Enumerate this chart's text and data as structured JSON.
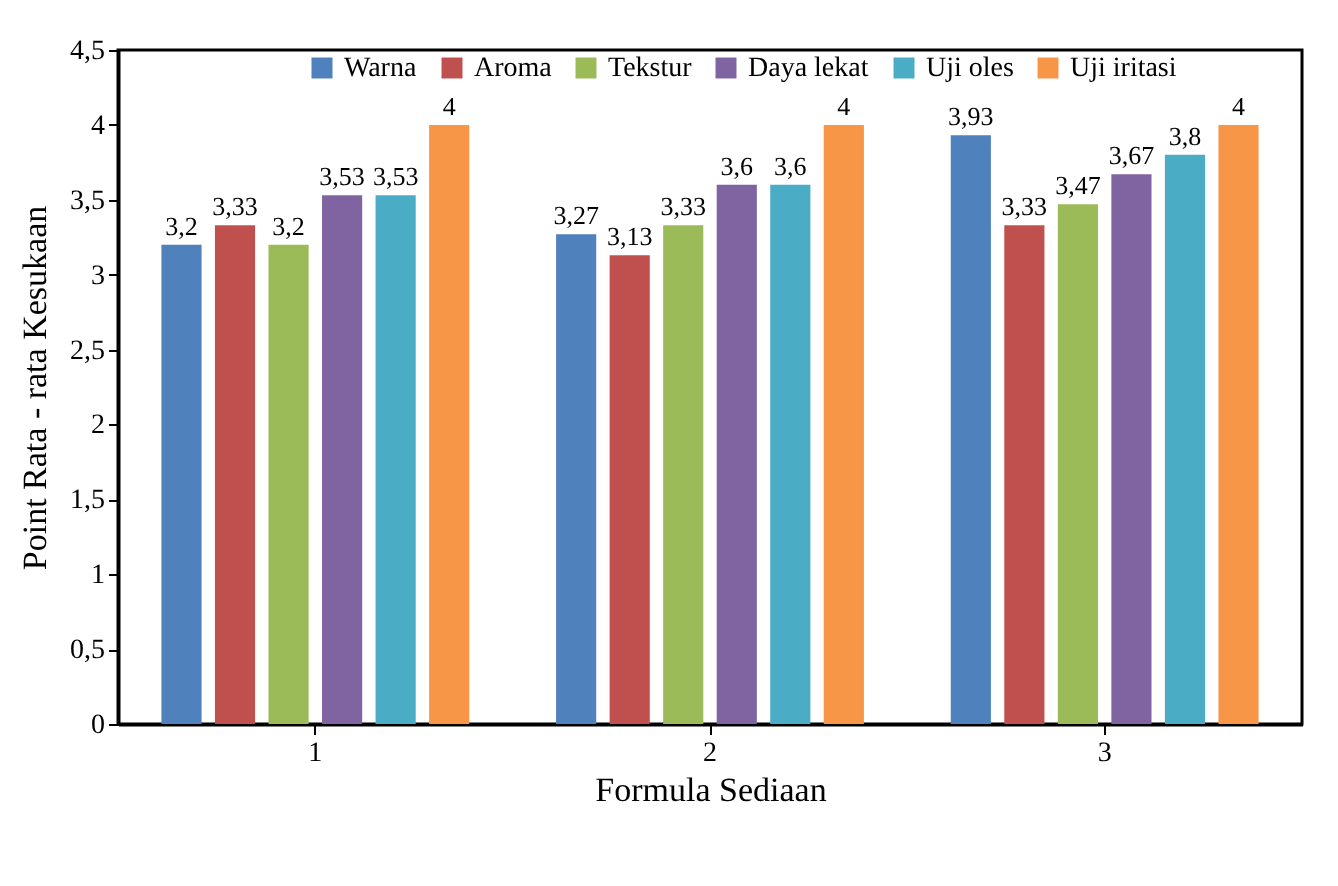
{
  "chart_data": {
    "type": "bar",
    "xlabel": "Formula Sediaan",
    "ylabel": "Point Rata - rata Kesukaan",
    "categories": [
      "1",
      "2",
      "3"
    ],
    "series": [
      {
        "name": "Warna",
        "color": "#4f81bd",
        "values": [
          3.2,
          3.27,
          3.93
        ],
        "value_labels": [
          "3,2",
          "3,27",
          "3,93"
        ]
      },
      {
        "name": "Aroma",
        "color": "#c0504d",
        "values": [
          3.33,
          3.13,
          3.33
        ],
        "value_labels": [
          "3,33",
          "3,13",
          "3,33"
        ]
      },
      {
        "name": "Tekstur",
        "color": "#9bbb59",
        "values": [
          3.2,
          3.33,
          3.47
        ],
        "value_labels": [
          "3,2",
          "3,33",
          "3,47"
        ]
      },
      {
        "name": "Daya lekat",
        "color": "#8064a2",
        "values": [
          3.53,
          3.6,
          3.67
        ],
        "value_labels": [
          "3,53",
          "3,6",
          "3,67"
        ]
      },
      {
        "name": "Uji oles",
        "color": "#4bacc6",
        "values": [
          3.53,
          3.6,
          3.8
        ],
        "value_labels": [
          "3,53",
          "3,6",
          "3,8"
        ]
      },
      {
        "name": "Uji iritasi",
        "color": "#f79646",
        "values": [
          4,
          4,
          4
        ],
        "value_labels": [
          "4",
          "4",
          "4"
        ]
      }
    ],
    "ylim": [
      0,
      4.5
    ],
    "yticks": [
      0,
      {
        "value": 0.5,
        "label": "0,5"
      },
      1,
      {
        "value": 1.5,
        "label": "1,5"
      },
      2,
      {
        "value": 2.5,
        "label": "2,5"
      },
      3,
      {
        "value": 3.5,
        "label": "3,5"
      },
      4,
      {
        "value": 4.5,
        "label": "4,5"
      }
    ],
    "grid": false,
    "legend": "top"
  }
}
